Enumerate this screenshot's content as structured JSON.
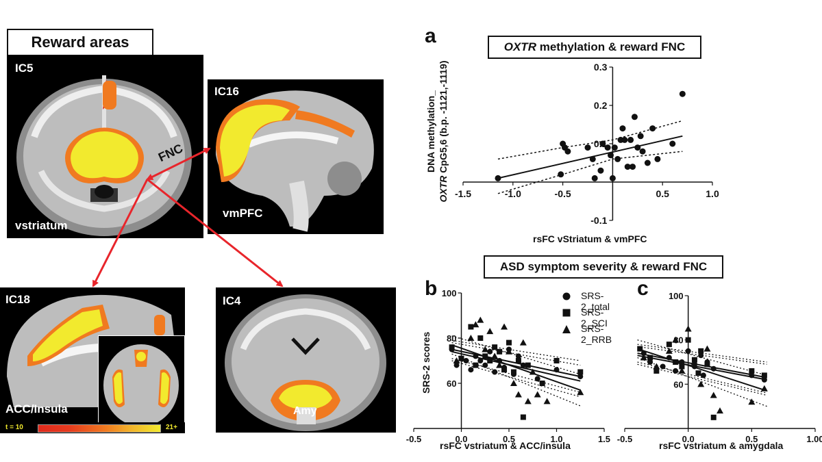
{
  "reward_title": "Reward areas",
  "brains": {
    "ic5": {
      "label": "IC5",
      "region": "vstriatum"
    },
    "ic16": {
      "label": "IC16",
      "region": "vmPFC"
    },
    "ic18": {
      "label": "IC18",
      "region": "ACC/Insula"
    },
    "ic4": {
      "label": "IC4",
      "region": "Amy"
    }
  },
  "fnc_label": "FNC",
  "colorbar": {
    "min_label": "t = 10",
    "max_label": "21+"
  },
  "panel_a": {
    "letter": "a",
    "title_italic": "OXTR",
    "title_rest": " methylation & reward FNC",
    "ylabel_line1": "DNA methylation_",
    "ylabel_italic": "OXTR",
    "ylabel_rest": " CpG5,6 (b.p. -1121,-1119)",
    "xlabel": "rsFC vStriatum & vmPFC"
  },
  "symptom_title": "ASD symptom severity & reward FNC",
  "panel_b": {
    "letter": "b",
    "ylabel": "SRS-2 scores",
    "xlabel": "rsFC vstriatum & ACC/insula"
  },
  "panel_c": {
    "letter": "c",
    "xlabel": "rsFC vstriatum & amygdala"
  },
  "legend": [
    "SRS-2_total",
    "SRS-2_SCI",
    "SRS-2_RRB"
  ],
  "colors": {
    "arrow": "#e8252b",
    "activation_yellow": "#f2ea2e",
    "activation_orange": "#f07a20",
    "activation_red": "#e02a1c"
  },
  "chart_data": [
    {
      "id": "a",
      "type": "scatter",
      "title": "OXTR methylation & reward FNC",
      "xlabel": "rsFC vStriatum & vmPFC",
      "ylabel": "DNA methylation_ OXTR CpG5,6 (b.p. -1121,-1119)",
      "xlim": [
        -1.5,
        1.0
      ],
      "ylim": [
        -0.1,
        0.3
      ],
      "xticks": [
        -1.5,
        -1.0,
        -0.5,
        0.5,
        1.0
      ],
      "xtick_labels": [
        "-1.5",
        "-1.0",
        "-0.5",
        "0.5",
        "1.0"
      ],
      "yticks": [
        0.3,
        0.2,
        0.1,
        -0.1
      ],
      "ytick_labels": [
        "0.3",
        "0.2",
        "0.1",
        "-0.1"
      ],
      "x": [
        -1.15,
        -0.5,
        -0.48,
        -0.45,
        -0.52,
        -0.25,
        -0.2,
        -0.18,
        -0.12,
        -0.1,
        -0.05,
        -0.02,
        0.0,
        0.02,
        0.05,
        0.08,
        0.1,
        0.12,
        0.15,
        0.18,
        0.2,
        0.22,
        0.25,
        0.28,
        0.3,
        0.35,
        0.4,
        0.45,
        0.6,
        0.7
      ],
      "y": [
        0.01,
        0.1,
        0.09,
        0.08,
        0.02,
        0.09,
        0.06,
        0.01,
        0.03,
        0.1,
        0.09,
        0.07,
        0.01,
        0.09,
        0.06,
        0.11,
        0.14,
        0.11,
        0.04,
        0.11,
        0.04,
        0.17,
        0.09,
        0.12,
        0.08,
        0.05,
        0.14,
        0.06,
        0.1,
        0.23
      ],
      "fit": {
        "x": [
          -1.15,
          0.7
        ],
        "y": [
          0.01,
          0.12
        ]
      },
      "ci_upper": {
        "x": [
          -1.15,
          -0.5,
          0.0,
          0.7
        ],
        "y": [
          0.06,
          0.09,
          0.11,
          0.16
        ]
      },
      "ci_lower": {
        "x": [
          -1.15,
          -0.5,
          0.0,
          0.7
        ],
        "y": [
          -0.03,
          0.02,
          0.06,
          0.08
        ]
      }
    },
    {
      "id": "b",
      "type": "scatter",
      "xlabel": "rsFC vstriatum & ACC/insula",
      "ylabel": "SRS-2 scores",
      "xlim": [
        -0.5,
        1.5
      ],
      "ylim": [
        40,
        100
      ],
      "xticks": [
        -0.5,
        0.0,
        0.5,
        1.0,
        1.5
      ],
      "xtick_labels": [
        "-0.5",
        "0.0",
        "0.5",
        "1.0",
        "1.5"
      ],
      "yticks": [
        100,
        80,
        60
      ],
      "ytick_labels": [
        "100",
        "80",
        "60"
      ],
      "series": [
        {
          "name": "SRS-2_total",
          "marker": "circle",
          "x": [
            -0.1,
            -0.05,
            0.05,
            0.1,
            0.15,
            0.2,
            0.25,
            0.3,
            0.35,
            0.4,
            0.45,
            0.5,
            0.55,
            0.6,
            0.65,
            0.8,
            1.0,
            1.25
          ],
          "y": [
            75,
            68,
            70,
            66,
            72,
            70,
            68,
            74,
            65,
            70,
            67,
            75,
            64,
            72,
            68,
            62,
            66,
            63
          ],
          "fit": {
            "x": [
              -0.1,
              1.25
            ],
            "y": [
              74,
              61
            ]
          }
        },
        {
          "name": "SRS-2_SCI",
          "marker": "square",
          "x": [
            -0.1,
            0.0,
            0.1,
            0.15,
            0.2,
            0.25,
            0.3,
            0.35,
            0.4,
            0.45,
            0.5,
            0.55,
            0.6,
            0.65,
            0.7,
            0.85,
            1.0,
            1.25
          ],
          "y": [
            76,
            71,
            85,
            68,
            80,
            72,
            70,
            76,
            74,
            66,
            78,
            65,
            70,
            45,
            68,
            60,
            70,
            65
          ],
          "fit": {
            "x": [
              -0.1,
              1.25
            ],
            "y": [
              75,
              63
            ]
          }
        },
        {
          "name": "SRS-2_RRB",
          "marker": "triangle",
          "x": [
            -0.05,
            0.1,
            0.15,
            0.2,
            0.25,
            0.3,
            0.35,
            0.4,
            0.45,
            0.5,
            0.55,
            0.6,
            0.65,
            0.7,
            0.75,
            0.8,
            0.9,
            1.25
          ],
          "y": [
            70,
            80,
            86,
            88,
            75,
            83,
            72,
            68,
            85,
            74,
            60,
            55,
            78,
            52,
            65,
            55,
            52,
            56
          ],
          "fit": {
            "x": [
              -0.1,
              1.25
            ],
            "y": [
              77,
              57
            ]
          }
        }
      ]
    },
    {
      "id": "c",
      "type": "scatter",
      "xlabel": "rsFC vstriatum & amygdala",
      "xlim": [
        -0.5,
        1.0
      ],
      "ylim": [
        40,
        100
      ],
      "xticks": [
        -0.5,
        0.0,
        0.5,
        1.0
      ],
      "xtick_labels": [
        "-0.5",
        "0.0",
        "0.5",
        "1.00"
      ],
      "yticks": [
        100,
        80,
        60
      ],
      "ytick_labels": [
        "100",
        "80",
        "60"
      ],
      "series": [
        {
          "name": "SRS-2_total",
          "marker": "circle",
          "x": [
            -0.35,
            -0.3,
            -0.2,
            -0.15,
            -0.1,
            -0.05,
            0.0,
            0.05,
            0.1,
            0.12,
            0.15,
            0.2,
            0.5,
            0.6
          ],
          "y": [
            74,
            70,
            68,
            72,
            66,
            70,
            75,
            68,
            73,
            64,
            70,
            67,
            64,
            62
          ],
          "fit": {
            "x": [
              -0.4,
              0.62
            ],
            "y": [
              73,
              62
            ]
          }
        },
        {
          "name": "SRS-2_SCI",
          "marker": "square",
          "x": [
            -0.38,
            -0.3,
            -0.25,
            -0.15,
            -0.1,
            -0.05,
            0.0,
            0.05,
            0.08,
            0.1,
            0.15,
            0.2,
            0.5,
            0.6
          ],
          "y": [
            76,
            72,
            66,
            78,
            70,
            68,
            80,
            71,
            65,
            75,
            69,
            45,
            66,
            64
          ],
          "fit": {
            "x": [
              -0.4,
              0.62
            ],
            "y": [
              74,
              63
            ]
          }
        },
        {
          "name": "SRS-2_RRB",
          "marker": "triangle",
          "x": [
            -0.35,
            -0.25,
            -0.15,
            -0.1,
            -0.05,
            0.0,
            0.05,
            0.1,
            0.15,
            0.2,
            0.25,
            0.5,
            0.6
          ],
          "y": [
            72,
            68,
            75,
            80,
            66,
            85,
            70,
            60,
            76,
            55,
            48,
            52,
            58
          ],
          "fit": {
            "x": [
              -0.4,
              0.62
            ],
            "y": [
              76,
              57
            ]
          }
        }
      ]
    }
  ]
}
